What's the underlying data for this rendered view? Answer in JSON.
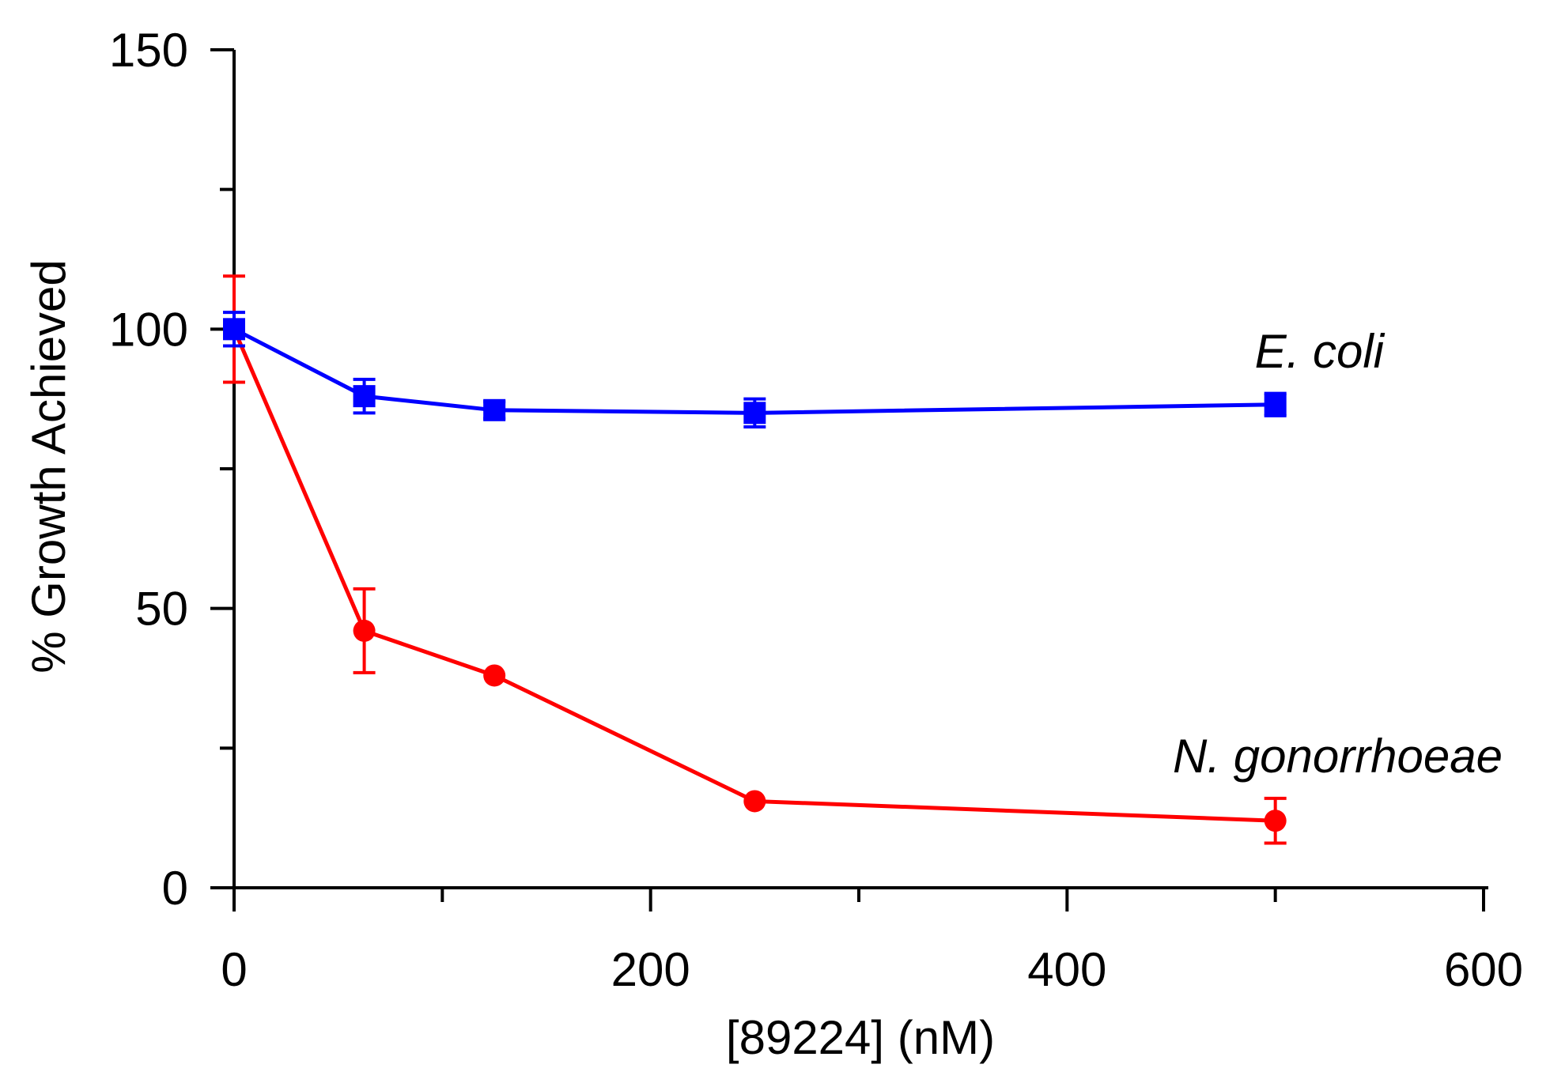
{
  "chart_data": {
    "type": "line",
    "title": "",
    "xlabel": "[89224]  (nM)",
    "ylabel": "% Growth Achieved",
    "xlim": [
      0,
      600
    ],
    "ylim": [
      0,
      150
    ],
    "x_ticks": [
      0,
      200,
      400,
      600
    ],
    "x_tick_labels": [
      "0",
      "200",
      "400",
      "600"
    ],
    "x_minor_ticks": [
      100,
      300,
      500
    ],
    "y_ticks": [
      0,
      50,
      100,
      150
    ],
    "y_tick_labels": [
      "0",
      "50",
      "100",
      "150"
    ],
    "y_minor_ticks": [
      25,
      75,
      125
    ],
    "grid": false,
    "series": [
      {
        "name": "E. coli",
        "color": "#0000ff",
        "marker": "square",
        "x": [
          0,
          62.5,
          125,
          250,
          500
        ],
        "y": [
          100,
          88,
          85.5,
          85,
          86.5
        ],
        "error": [
          3,
          3,
          1.5,
          2.5,
          2
        ]
      },
      {
        "name": "N. gonorrhoeae",
        "color": "#ff0000",
        "marker": "circle",
        "x": [
          0,
          62.5,
          125,
          250,
          500
        ],
        "y": [
          100,
          46,
          38,
          15.5,
          12
        ],
        "error": [
          9.5,
          7.5,
          0,
          0,
          4
        ]
      }
    ]
  }
}
